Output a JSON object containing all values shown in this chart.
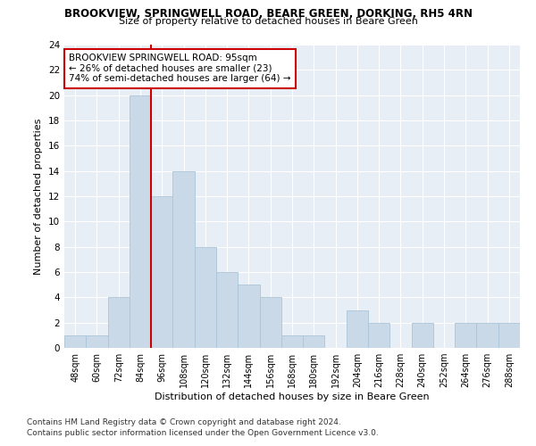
{
  "title1": "BROOKVIEW, SPRINGWELL ROAD, BEARE GREEN, DORKING, RH5 4RN",
  "title2": "Size of property relative to detached houses in Beare Green",
  "xlabel": "Distribution of detached houses by size in Beare Green",
  "ylabel": "Number of detached properties",
  "categories": [
    "48sqm",
    "60sqm",
    "72sqm",
    "84sqm",
    "96sqm",
    "108sqm",
    "120sqm",
    "132sqm",
    "144sqm",
    "156sqm",
    "168sqm",
    "180sqm",
    "192sqm",
    "204sqm",
    "216sqm",
    "228sqm",
    "240sqm",
    "252sqm",
    "264sqm",
    "276sqm",
    "288sqm"
  ],
  "values": [
    1,
    1,
    4,
    20,
    12,
    14,
    8,
    6,
    5,
    4,
    1,
    1,
    0,
    3,
    2,
    0,
    2,
    0,
    2,
    2,
    2
  ],
  "bar_color": "#c9d9e8",
  "bar_edge_color": "#aac4d8",
  "vline_color": "#cc0000",
  "annotation_box_text": "BROOKVIEW SPRINGWELL ROAD: 95sqm\n← 26% of detached houses are smaller (23)\n74% of semi-detached houses are larger (64) →",
  "annotation_box_edge_color": "#cc0000",
  "ylim": [
    0,
    24
  ],
  "yticks": [
    0,
    2,
    4,
    6,
    8,
    10,
    12,
    14,
    16,
    18,
    20,
    22,
    24
  ],
  "background_color": "#e8eef5",
  "footer1": "Contains HM Land Registry data © Crown copyright and database right 2024.",
  "footer2": "Contains public sector information licensed under the Open Government Licence v3.0."
}
